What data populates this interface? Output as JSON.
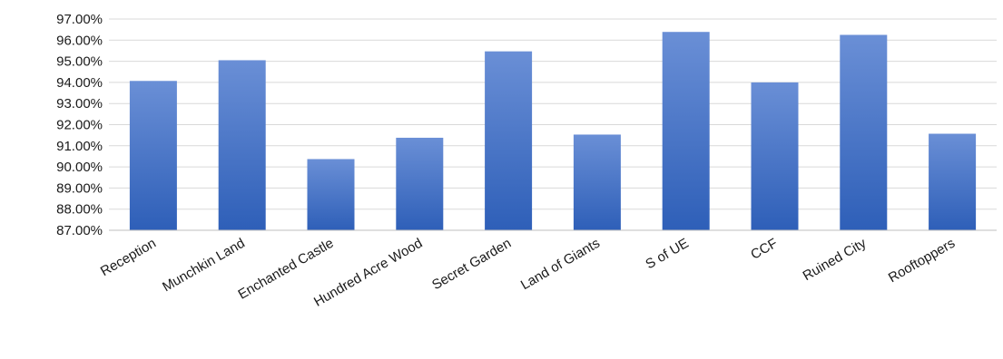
{
  "chart_data": {
    "type": "bar",
    "categories": [
      "Reception",
      "Munchkin Land",
      "Enchanted Castle",
      "Hundred Acre Wood",
      "Secret Garden",
      "Land of Giants",
      "S of UE",
      "CCF",
      "Ruined City",
      "Rooftoppers"
    ],
    "values": [
      94.07,
      95.05,
      90.37,
      91.38,
      95.47,
      91.53,
      96.39,
      94.0,
      96.25,
      91.57
    ],
    "yticks": [
      "87.00%",
      "88.00%",
      "89.00%",
      "90.00%",
      "91.00%",
      "92.00%",
      "93.00%",
      "94.00%",
      "95.00%",
      "96.00%",
      "97.00%"
    ],
    "ylim": [
      87,
      97
    ],
    "title": "",
    "xlabel": "",
    "ylabel": "",
    "grid": true,
    "legend": "none",
    "colors": {
      "bar_top": "#6a8fd6",
      "bar_bottom": "#2e5fb8",
      "grid": "#d9d9d9"
    }
  }
}
